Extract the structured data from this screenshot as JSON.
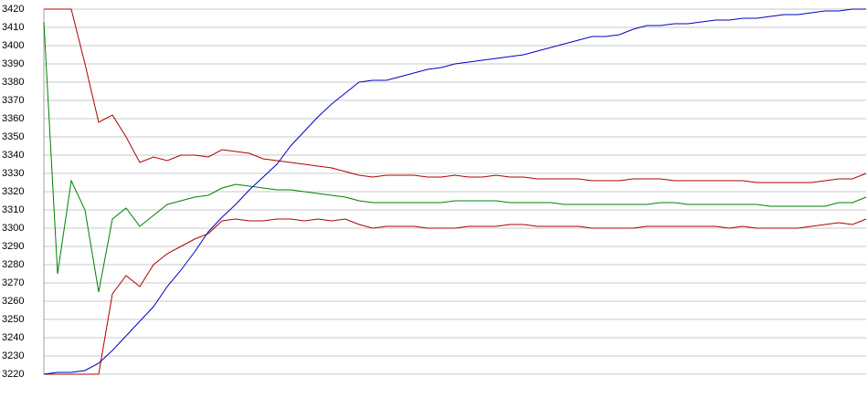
{
  "chart_data": {
    "type": "line",
    "ylim": [
      3220,
      3420
    ],
    "yticks": [
      3220,
      3230,
      3240,
      3250,
      3260,
      3270,
      3280,
      3290,
      3300,
      3310,
      3320,
      3330,
      3340,
      3350,
      3360,
      3370,
      3380,
      3390,
      3400,
      3410,
      3420
    ],
    "grid": true,
    "series": [
      {
        "color": "#b00000",
        "values": [
          3420,
          3420,
          3420,
          3390,
          3358,
          3362,
          3350,
          3336,
          3339,
          3337,
          3340,
          3340,
          3339,
          3343,
          3342,
          3341,
          3338,
          3337,
          3336,
          3335,
          3334,
          3333,
          3331,
          3329,
          3328,
          3329,
          3329,
          3329,
          3328,
          3328,
          3329,
          3328,
          3328,
          3329,
          3328,
          3328,
          3327,
          3327,
          3327,
          3327,
          3326,
          3326,
          3326,
          3327,
          3327,
          3327,
          3326,
          3326,
          3326,
          3326,
          3326,
          3326,
          3325,
          3325,
          3325,
          3325,
          3325,
          3326,
          3327,
          3327,
          3330
        ]
      },
      {
        "color": "#008000",
        "values": [
          3413,
          3275,
          3326,
          3310,
          3265,
          3305,
          3311,
          3301,
          3307,
          3313,
          3315,
          3317,
          3318,
          3322,
          3324,
          3323,
          3322,
          3321,
          3321,
          3320,
          3319,
          3318,
          3317,
          3315,
          3314,
          3314,
          3314,
          3314,
          3314,
          3314,
          3315,
          3315,
          3315,
          3315,
          3314,
          3314,
          3314,
          3314,
          3313,
          3313,
          3313,
          3313,
          3313,
          3313,
          3313,
          3314,
          3314,
          3313,
          3313,
          3313,
          3313,
          3313,
          3313,
          3312,
          3312,
          3312,
          3312,
          3312,
          3314,
          3314,
          3317
        ]
      },
      {
        "color": "#b00000",
        "values": [
          3220,
          3220,
          3220,
          3220,
          3220,
          3264,
          3274,
          3268,
          3280,
          3286,
          3290,
          3294,
          3297,
          3304,
          3305,
          3304,
          3304,
          3305,
          3305,
          3304,
          3305,
          3304,
          3305,
          3302,
          3300,
          3301,
          3301,
          3301,
          3300,
          3300,
          3300,
          3301,
          3301,
          3301,
          3302,
          3302,
          3301,
          3301,
          3301,
          3301,
          3300,
          3300,
          3300,
          3300,
          3301,
          3301,
          3301,
          3301,
          3301,
          3301,
          3300,
          3301,
          3300,
          3300,
          3300,
          3300,
          3301,
          3302,
          3303,
          3302,
          3305
        ]
      },
      {
        "color": "#0000c0",
        "values": [
          3220,
          3221,
          3221,
          3222,
          3226,
          3233,
          3241,
          3249,
          3257,
          3268,
          3277,
          3287,
          3298,
          3306,
          3313,
          3321,
          3328,
          3335,
          3345,
          3353,
          3361,
          3368,
          3374,
          3380,
          3381,
          3381,
          3383,
          3385,
          3387,
          3388,
          3390,
          3391,
          3392,
          3393,
          3394,
          3395,
          3397,
          3399,
          3401,
          3403,
          3405,
          3405,
          3406,
          3409,
          3411,
          3411,
          3412,
          3412,
          3413,
          3414,
          3414,
          3415,
          3415,
          3416,
          3417,
          3417,
          3418,
          3419,
          3419,
          3420,
          3420
        ]
      }
    ]
  }
}
